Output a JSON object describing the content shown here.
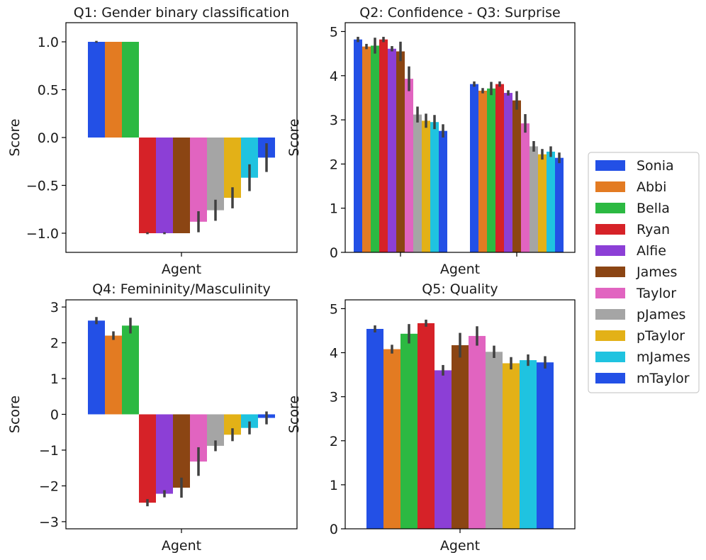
{
  "chart_data": {
    "type": "bar",
    "legend": {
      "position": "center-right",
      "entries": [
        {
          "name": "Sonia",
          "color": "#2350e6"
        },
        {
          "name": "Abbi",
          "color": "#e37b22"
        },
        {
          "name": "Bella",
          "color": "#2cb942"
        },
        {
          "name": "Ryan",
          "color": "#d62228"
        },
        {
          "name": "Alfie",
          "color": "#8c3fd6"
        },
        {
          "name": "James",
          "color": "#8b4513"
        },
        {
          "name": "Taylor",
          "color": "#e164c0"
        },
        {
          "name": "pJames",
          "color": "#a5a5a5"
        },
        {
          "name": "pTaylor",
          "color": "#e3b117"
        },
        {
          "name": "mJames",
          "color": "#1fc3e0"
        },
        {
          "name": "mTaylor",
          "color": "#2350e6"
        }
      ]
    },
    "panels": [
      {
        "title": "Q1: Gender binary classification",
        "xlabel": "Agent",
        "ylabel": "Score",
        "ylim": [
          -1.2,
          1.2
        ],
        "yticks": [
          -1.0,
          -0.5,
          0.0,
          0.5,
          1.0
        ],
        "ytick_labels": [
          "−1.0",
          "−0.5",
          "0.0",
          "0.5",
          "1.0"
        ],
        "groups": 1,
        "series": [
          {
            "name": "Sonia",
            "values": [
              1.0
            ],
            "err": [
              0.01
            ]
          },
          {
            "name": "Abbi",
            "values": [
              1.0
            ],
            "err": [
              0.0
            ]
          },
          {
            "name": "Bella",
            "values": [
              1.0
            ],
            "err": [
              0.0
            ]
          },
          {
            "name": "Ryan",
            "values": [
              -1.0
            ],
            "err": [
              0.01
            ]
          },
          {
            "name": "Alfie",
            "values": [
              -1.0
            ],
            "err": [
              0.01
            ]
          },
          {
            "name": "James",
            "values": [
              -1.0
            ],
            "err": [
              0.0
            ]
          },
          {
            "name": "Taylor",
            "values": [
              -0.88
            ],
            "err": [
              0.11
            ]
          },
          {
            "name": "pJames",
            "values": [
              -0.76
            ],
            "err": [
              0.11
            ]
          },
          {
            "name": "pTaylor",
            "values": [
              -0.63
            ],
            "err": [
              0.11
            ]
          },
          {
            "name": "mJames",
            "values": [
              -0.42
            ],
            "err": [
              0.14
            ]
          },
          {
            "name": "mTaylor",
            "values": [
              -0.21
            ],
            "err": [
              0.15
            ]
          }
        ]
      },
      {
        "title": "Q2: Confidence - Q3: Surprise",
        "xlabel": "Agent",
        "ylabel": "Score",
        "ylim": [
          0,
          5.2
        ],
        "yticks": [
          0,
          1,
          2,
          3,
          4,
          5
        ],
        "ytick_labels": [
          "0",
          "1",
          "2",
          "3",
          "4",
          "5"
        ],
        "groups": 2,
        "series": [
          {
            "name": "Sonia",
            "values": [
              4.82,
              3.81
            ],
            "err": [
              0.06,
              0.06
            ]
          },
          {
            "name": "Abbi",
            "values": [
              4.66,
              3.66
            ],
            "err": [
              0.06,
              0.06
            ]
          },
          {
            "name": "Bella",
            "values": [
              4.68,
              3.71
            ],
            "err": [
              0.18,
              0.15
            ]
          },
          {
            "name": "Ryan",
            "values": [
              4.82,
              3.81
            ],
            "err": [
              0.06,
              0.06
            ]
          },
          {
            "name": "Alfie",
            "values": [
              4.61,
              3.61
            ],
            "err": [
              0.06,
              0.06
            ]
          },
          {
            "name": "James",
            "values": [
              4.55,
              3.44
            ],
            "err": [
              0.22,
              0.21
            ]
          },
          {
            "name": "Taylor",
            "values": [
              3.93,
              2.92
            ],
            "err": [
              0.28,
              0.21
            ]
          },
          {
            "name": "pJames",
            "values": [
              3.12,
              2.4
            ],
            "err": [
              0.18,
              0.12
            ]
          },
          {
            "name": "pTaylor",
            "values": [
              2.98,
              2.22
            ],
            "err": [
              0.16,
              0.12
            ]
          },
          {
            "name": "mJames",
            "values": [
              2.95,
              2.28
            ],
            "err": [
              0.16,
              0.12
            ]
          },
          {
            "name": "mTaylor",
            "values": [
              2.75,
              2.14
            ],
            "err": [
              0.15,
              0.12
            ]
          }
        ]
      },
      {
        "title": "Q4: Femininity/Masculinity",
        "xlabel": "Agent",
        "ylabel": "Score",
        "ylim": [
          -3.2,
          3.2
        ],
        "yticks": [
          -3,
          -2,
          -1,
          0,
          1,
          2,
          3
        ],
        "ytick_labels": [
          "−3",
          "−2",
          "−1",
          "0",
          "1",
          "2",
          "3"
        ],
        "groups": 1,
        "series": [
          {
            "name": "Sonia",
            "values": [
              2.62
            ],
            "err": [
              0.1
            ]
          },
          {
            "name": "Abbi",
            "values": [
              2.2
            ],
            "err": [
              0.12
            ]
          },
          {
            "name": "Bella",
            "values": [
              2.48
            ],
            "err": [
              0.22
            ]
          },
          {
            "name": "Ryan",
            "values": [
              -2.47
            ],
            "err": [
              0.1
            ]
          },
          {
            "name": "Alfie",
            "values": [
              -2.22
            ],
            "err": [
              0.1
            ]
          },
          {
            "name": "James",
            "values": [
              -2.05
            ],
            "err": [
              0.28
            ]
          },
          {
            "name": "Taylor",
            "values": [
              -1.32
            ],
            "err": [
              0.4
            ]
          },
          {
            "name": "pJames",
            "values": [
              -0.88
            ],
            "err": [
              0.15
            ]
          },
          {
            "name": "pTaylor",
            "values": [
              -0.57
            ],
            "err": [
              0.18
            ]
          },
          {
            "name": "mJames",
            "values": [
              -0.38
            ],
            "err": [
              0.18
            ]
          },
          {
            "name": "mTaylor",
            "values": [
              -0.1
            ],
            "err": [
              0.18
            ]
          }
        ]
      },
      {
        "title": "Q5: Quality",
        "xlabel": "Agent",
        "ylabel": "Score",
        "ylim": [
          0,
          5.2
        ],
        "yticks": [
          0,
          1,
          2,
          3,
          4,
          5
        ],
        "ytick_labels": [
          "0",
          "1",
          "2",
          "3",
          "4",
          "5"
        ],
        "groups": 1,
        "series": [
          {
            "name": "Sonia",
            "values": [
              4.54
            ],
            "err": [
              0.08
            ]
          },
          {
            "name": "Abbi",
            "values": [
              4.08
            ],
            "err": [
              0.1
            ]
          },
          {
            "name": "Bella",
            "values": [
              4.43
            ],
            "err": [
              0.22
            ]
          },
          {
            "name": "Ryan",
            "values": [
              4.67
            ],
            "err": [
              0.08
            ]
          },
          {
            "name": "Alfie",
            "values": [
              3.6
            ],
            "err": [
              0.12
            ]
          },
          {
            "name": "James",
            "values": [
              4.17
            ],
            "err": [
              0.28
            ]
          },
          {
            "name": "Taylor",
            "values": [
              4.38
            ],
            "err": [
              0.22
            ]
          },
          {
            "name": "pJames",
            "values": [
              4.02
            ],
            "err": [
              0.14
            ]
          },
          {
            "name": "pTaylor",
            "values": [
              3.76
            ],
            "err": [
              0.14
            ]
          },
          {
            "name": "mJames",
            "values": [
              3.83
            ],
            "err": [
              0.13
            ]
          },
          {
            "name": "mTaylor",
            "values": [
              3.78
            ],
            "err": [
              0.14
            ]
          }
        ]
      }
    ]
  }
}
